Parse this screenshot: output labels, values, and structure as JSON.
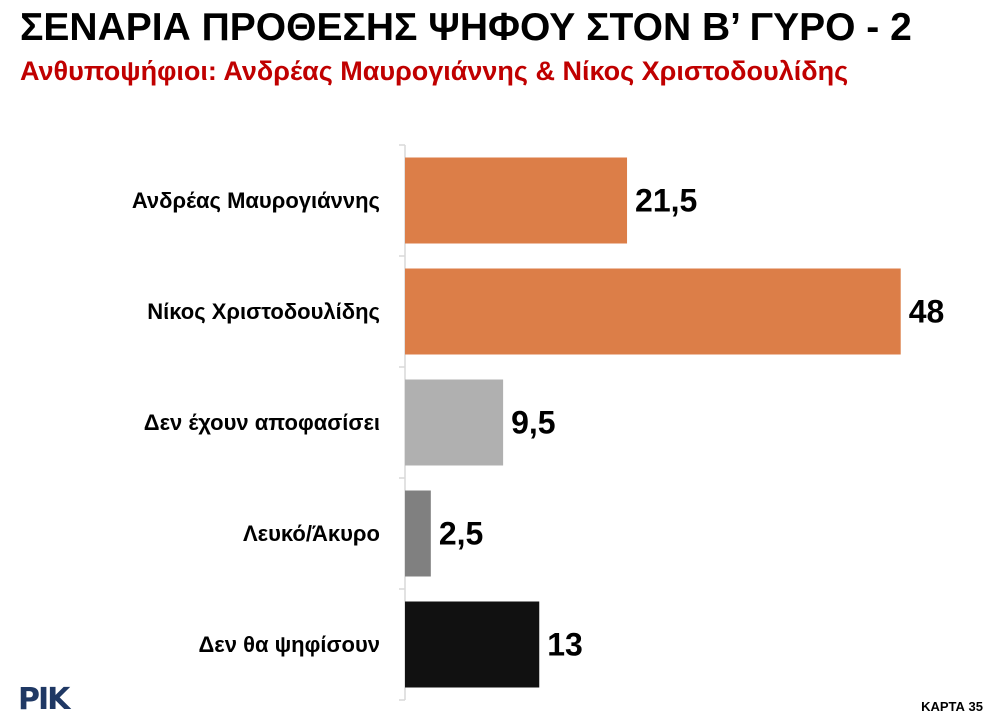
{
  "header": {
    "title": "ΣΕΝΑΡΙΑ ΠΡΟΘΕΣΗΣ ΨΗΦΟΥ ΣΤΟΝ Β’ ΓΥΡΟ - 2",
    "subtitle": "Ανθυποψήφιοι: Ανδρέας Μαυρογιάννης & Νίκος Χριστοδουλίδης"
  },
  "footer": {
    "logo_text": "ΡΙΚ",
    "card_label": "ΚΑΡΤΑ 35"
  },
  "chart_data": {
    "type": "bar",
    "orientation": "horizontal",
    "title": "ΣΕΝΑΡΙΑ ΠΡΟΘΕΣΗΣ ΨΗΦΟΥ ΣΤΟΝ Β’ ΓΥΡΟ - 2",
    "subtitle": "Ανθυποψήφιοι: Ανδρέας Μαυρογιάννης & Νίκος Χριστοδουλίδης",
    "categories": [
      "Ανδρέας Μαυρογιάννης",
      "Νίκος Χριστοδουλίδης",
      "Δεν έχουν αποφασίσει",
      "Λευκό/Άκυρο",
      "Δεν θα ψηφίσουν"
    ],
    "values": [
      21.5,
      48,
      9.5,
      2.5,
      13
    ],
    "value_labels": [
      "21,5",
      "48",
      "9,5",
      "2,5",
      "13"
    ],
    "colors": [
      "#dc7e48",
      "#dc7e48",
      "#b0b0b0",
      "#808080",
      "#111111"
    ],
    "axis_color": "#d9d9d9",
    "xlim": [
      0,
      55
    ],
    "grid": false,
    "legend": "none"
  }
}
